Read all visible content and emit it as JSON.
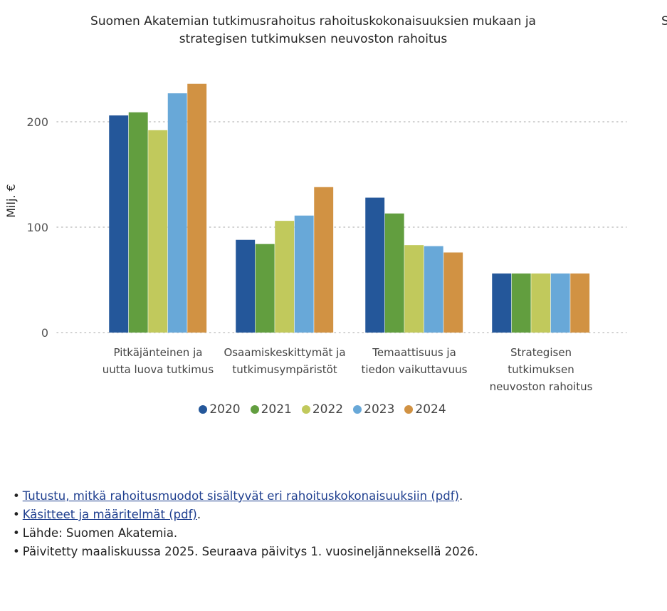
{
  "chart_data": {
    "type": "bar",
    "title": "Suomen Akatemian tutkimusrahoitus rahoituskokonaisuuksien mukaan ja strategisen tutkimuksen neuvoston rahoitus",
    "xlabel": "",
    "ylabel": "Milj. €",
    "ylim": [
      0,
      250
    ],
    "yticks": [
      0,
      100,
      200
    ],
    "grid": true,
    "legend_position": "bottom",
    "categories": [
      [
        "Pitkäjänteinen ja",
        "uutta luova tutkimus"
      ],
      [
        "Osaamiskeskittymät ja",
        "tutkimusympäristöt"
      ],
      [
        "Temaattisuus ja",
        "tiedon vaikuttavuus"
      ],
      [
        "Strategisen",
        "tutkimuksen",
        "neuvoston rahoitus"
      ]
    ],
    "series": [
      {
        "name": "2020",
        "color": "#24579a",
        "values": [
          206,
          88,
          128,
          56
        ]
      },
      {
        "name": "2021",
        "color": "#629e3f",
        "values": [
          209,
          84,
          113,
          56
        ]
      },
      {
        "name": "2022",
        "color": "#c1c95c",
        "values": [
          192,
          106,
          83,
          56
        ]
      },
      {
        "name": "2023",
        "color": "#68a8d8",
        "values": [
          227,
          111,
          82,
          56
        ]
      },
      {
        "name": "2024",
        "color": "#d19243",
        "values": [
          236,
          138,
          76,
          56
        ]
      }
    ]
  },
  "stray_text": "S",
  "notes": {
    "link1": "Tutustu, mitkä rahoitusmuodot sisältyvät eri rahoituskokonaisuuksiin (pdf)",
    "link2": "Käsitteet ja määritelmät (pdf)",
    "line3": "Lähde: Suomen Akatemia.",
    "line4": "Päivitetty maaliskuussa 2025. Seuraava päivitys 1. vuosineljänneksellä 2026."
  }
}
